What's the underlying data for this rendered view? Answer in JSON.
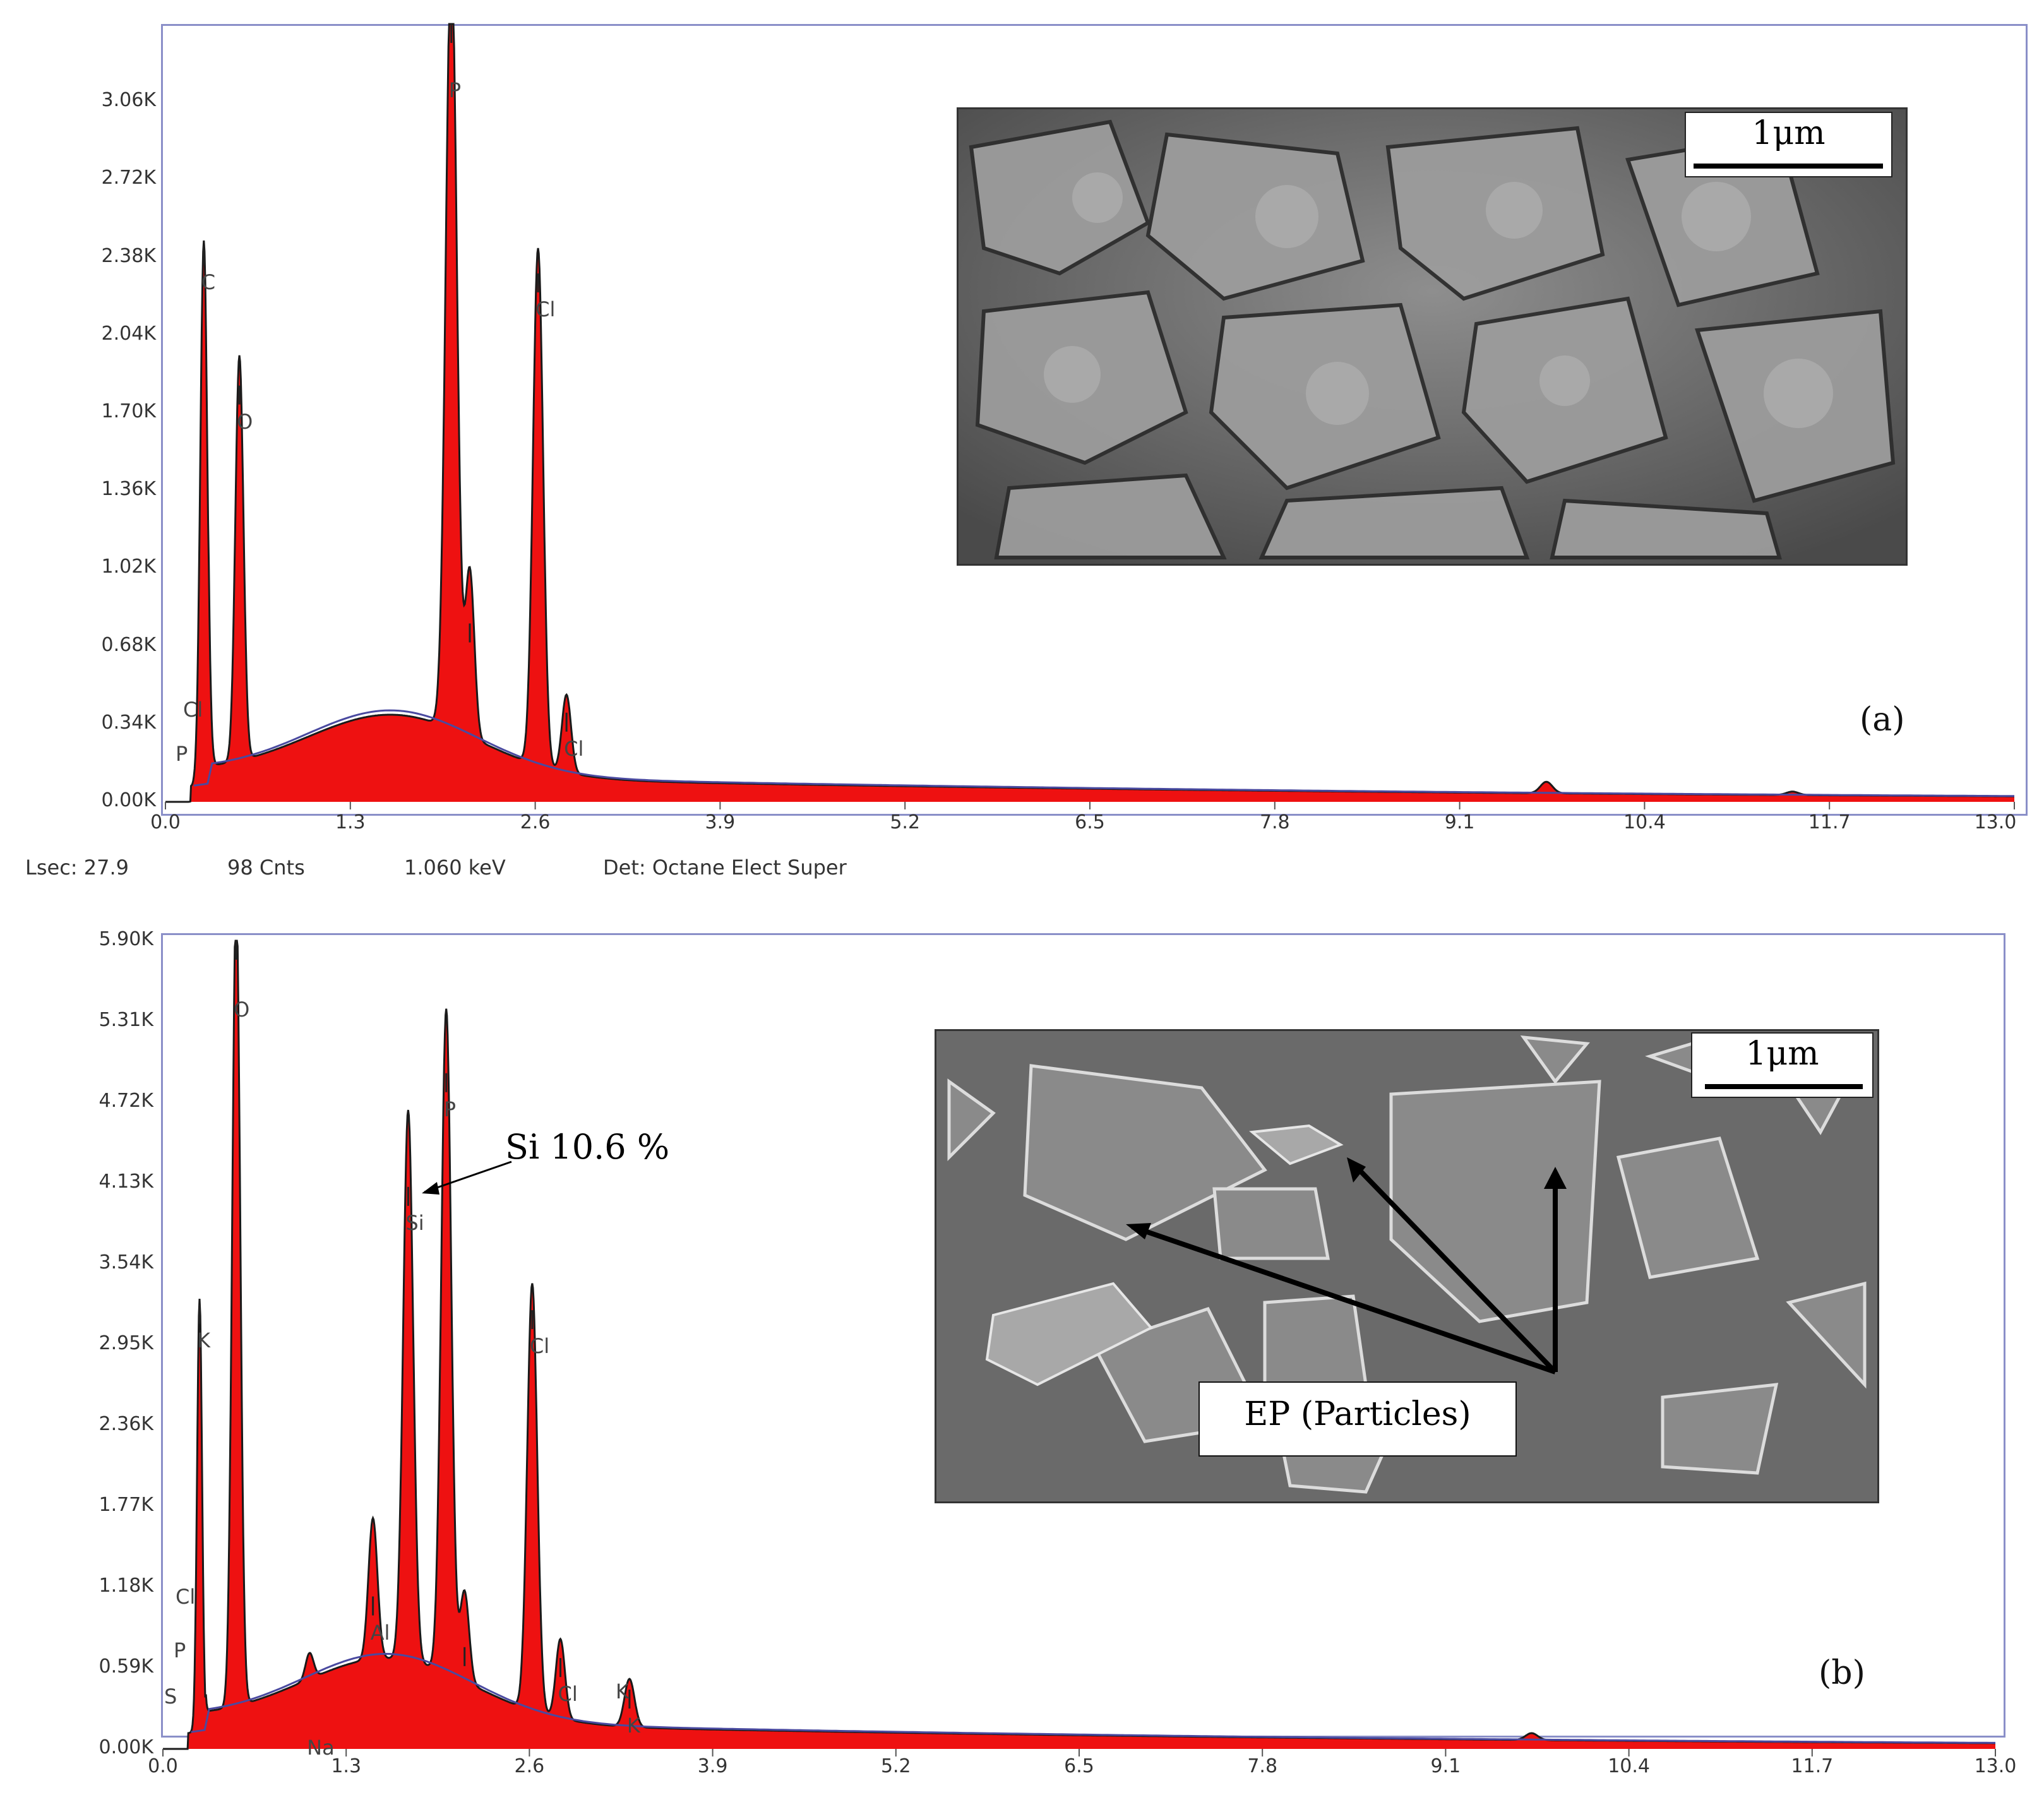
{
  "status_bar": {
    "lsec": "Lsec: 27.9",
    "cnts": "98 Cnts",
    "kev": "1.060 keV",
    "det": "Det: Octane Elect Super"
  },
  "colors": {
    "fill": "#ee1111",
    "outline": "#1a1a1a",
    "background_fit": "#4a4aa0",
    "frame": "#8a8fc8"
  },
  "chart_data": [
    {
      "type": "area",
      "panel_label": "(a)",
      "xlim": [
        0,
        13.0
      ],
      "ylim": [
        0,
        3.4
      ],
      "x_ticks": [
        "0.0",
        "1.3",
        "2.6",
        "3.9",
        "5.2",
        "6.5",
        "7.8",
        "9.1",
        "10.4",
        "11.7",
        "13.0"
      ],
      "y_ticks": [
        "0.00K",
        "0.34K",
        "0.68K",
        "1.02K",
        "1.36K",
        "1.70K",
        "2.04K",
        "2.38K",
        "2.72K",
        "3.06K"
      ],
      "y_unit": "K counts",
      "peaks": [
        {
          "label": "C",
          "x": 0.27,
          "y": 2.38,
          "width": 0.035
        },
        {
          "label": "O",
          "x": 0.52,
          "y": 1.77,
          "width": 0.04
        },
        {
          "label": "P",
          "x": 2.01,
          "y": 3.4,
          "width": 0.055
        },
        {
          "label": "",
          "x": 2.14,
          "y": 0.73,
          "width": 0.045
        },
        {
          "label": "Cl",
          "x": 2.62,
          "y": 2.26,
          "width": 0.05
        },
        {
          "label": "Cl",
          "x": 2.82,
          "y": 0.34,
          "width": 0.045
        },
        {
          "label": "",
          "x": 9.71,
          "y": 0.05,
          "width": 0.06
        },
        {
          "label": "",
          "x": 11.44,
          "y": 0.015,
          "width": 0.06
        }
      ],
      "low_energy_labels": [
        "Cl",
        "P"
      ],
      "inset": {
        "scale_bar": "1μm"
      }
    },
    {
      "type": "area",
      "panel_label": "(b)",
      "xlim": [
        0,
        13.0
      ],
      "ylim": [
        0,
        5.9
      ],
      "x_ticks": [
        "0.0",
        "1.3",
        "2.6",
        "3.9",
        "5.2",
        "6.5",
        "7.8",
        "9.1",
        "10.4",
        "11.7",
        "13.0"
      ],
      "y_ticks": [
        "0.00K",
        "0.59K",
        "1.18K",
        "1.77K",
        "2.36K",
        "2.95K",
        "3.54K",
        "4.13K",
        "4.72K",
        "5.31K",
        "5.90K"
      ],
      "y_unit": "K counts",
      "peaks": [
        {
          "label": "K",
          "x": 0.26,
          "y": 3.16,
          "width": 0.025
        },
        {
          "label": "O",
          "x": 0.52,
          "y": 5.9,
          "width": 0.04
        },
        {
          "label": "Na",
          "x": 1.04,
          "y": 0.19,
          "width": 0.04
        },
        {
          "label": "Al",
          "x": 1.49,
          "y": 1.03,
          "width": 0.045
        },
        {
          "label": "Si",
          "x": 1.74,
          "y": 4.02,
          "width": 0.05
        },
        {
          "label": "P",
          "x": 2.01,
          "y": 4.85,
          "width": 0.05
        },
        {
          "label": "",
          "x": 2.14,
          "y": 0.66,
          "width": 0.045
        },
        {
          "label": "Cl",
          "x": 2.62,
          "y": 3.12,
          "width": 0.05
        },
        {
          "label": "Cl",
          "x": 2.82,
          "y": 0.58,
          "width": 0.045
        },
        {
          "label": "K",
          "x": 3.31,
          "y": 0.35,
          "width": 0.05
        },
        {
          "label": "",
          "x": 9.71,
          "y": 0.05,
          "width": 0.06
        }
      ],
      "extra_labels": [
        "K",
        "Cl",
        "P",
        "S"
      ],
      "annotation": "Si 10.6 %",
      "inset": {
        "scale_bar": "1μm",
        "callout": "EP (Particles)"
      }
    }
  ]
}
